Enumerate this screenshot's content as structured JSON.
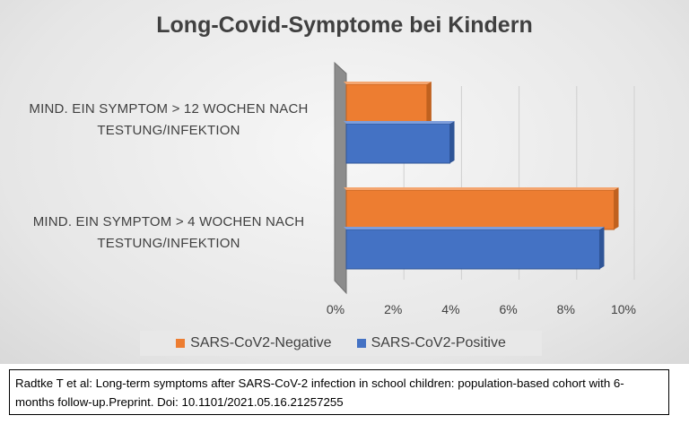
{
  "chart_data": {
    "type": "bar",
    "orientation": "horizontal",
    "title": "Long-Covid-Symptome bei Kindern",
    "categories": [
      "MIND. EIN SYMPTOM > 12 WOCHEN NACH TESTUNG/INFEKTION",
      "MIND. EIN SYMPTOM > 4 WOCHEN NACH TESTUNG/INFEKTION"
    ],
    "category_lines": [
      [
        "MIND. EIN SYMPTOM > 12 WOCHEN NACH",
        "TESTUNG/INFEKTION"
      ],
      [
        "MIND. EIN SYMPTOM > 4 WOCHEN NACH",
        "TESTUNG/INFEKTION"
      ]
    ],
    "series": [
      {
        "name": "SARS-CoV2-Negative",
        "color": "#ed7d31",
        "values": [
          2.8,
          9.3
        ]
      },
      {
        "name": "SARS-CoV2-Positive",
        "color": "#4472c4",
        "values": [
          3.6,
          8.8
        ]
      }
    ],
    "xlim": [
      0,
      10
    ],
    "xticks": [
      "0%",
      "2%",
      "4%",
      "6%",
      "8%",
      "10%"
    ],
    "grid": true,
    "legend_position": "bottom",
    "style": "3d"
  },
  "citation": "Radtke T et al: Long-term symptoms after SARS-CoV-2 infection in school children: population-based cohort with 6-months follow-up.Preprint. Doi: 10.1101/2021.05.16.21257255"
}
